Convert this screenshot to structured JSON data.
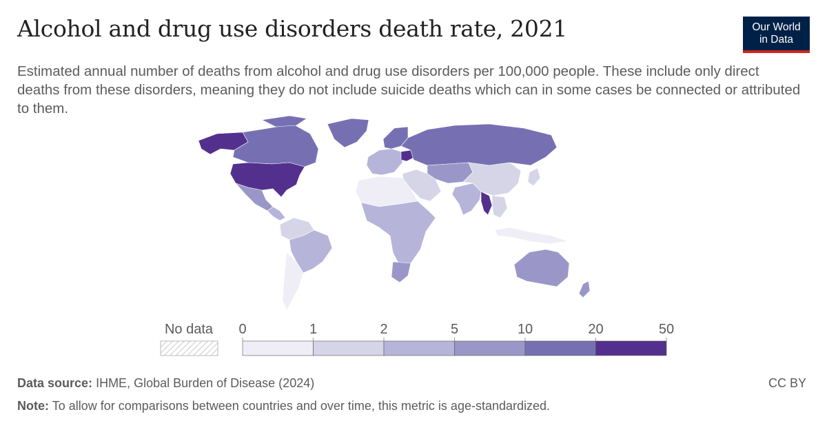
{
  "title": "Alcohol and drug use disorders death rate, 2021",
  "subtitle": "Estimated annual number of deaths from alcohol and drug use disorders per 100,000 people. These include only direct deaths from these disorders, meaning they do not include suicide deaths which can in some cases be connected or attributed to them.",
  "logo": {
    "line1": "Our World",
    "line2": "in Data",
    "bg": "#002147",
    "accent": "#ce261e"
  },
  "legend": {
    "no_data_label": "No data",
    "bins": [
      {
        "from": "0",
        "to": "1",
        "color": "#efeef6"
      },
      {
        "from": "1",
        "to": "2",
        "color": "#d6d5e8"
      },
      {
        "from": "2",
        "to": "5",
        "color": "#b6b4d9"
      },
      {
        "from": "5",
        "to": "10",
        "color": "#9a97c8"
      },
      {
        "from": "10",
        "to": "20",
        "color": "#7670b3"
      },
      {
        "from": "20",
        "to": "50",
        "color": "#53308e"
      }
    ],
    "ticks": [
      "0",
      "1",
      "2",
      "5",
      "10",
      "20",
      "50"
    ]
  },
  "regions": {
    "usa": "#53308e",
    "canada": "#7670b3",
    "alaska": "#53308e",
    "greenland": "#7670b3",
    "mexico": "#9a97c8",
    "central_america": "#b6b4d9",
    "south_america_north": "#d6d5e8",
    "brazil": "#b6b4d9",
    "southern_cone": "#efeef6",
    "europe_west": "#b6b4d9",
    "scandinavia": "#7670b3",
    "belarus": "#53308e",
    "russia": "#7670b3",
    "central_asia": "#9a97c8",
    "middle_east": "#d6d5e8",
    "north_africa": "#efeef6",
    "sub_saharan_africa": "#b6b4d9",
    "south_africa": "#9a97c8",
    "india": "#b6b4d9",
    "myanmar": "#53308e",
    "china": "#d6d5e8",
    "southeast_asia": "#d6d5e8",
    "indonesia": "#efeef6",
    "japan": "#d6d5e8",
    "australia": "#9a97c8",
    "new_zealand": "#9a97c8"
  },
  "footer": {
    "source_label": "Data source:",
    "source_text": "IHME, Global Burden of Disease (2024)",
    "note_label": "Note:",
    "note_text": "To allow for comparisons between countries and over time, this metric is age-standardized.",
    "license": "CC BY"
  }
}
